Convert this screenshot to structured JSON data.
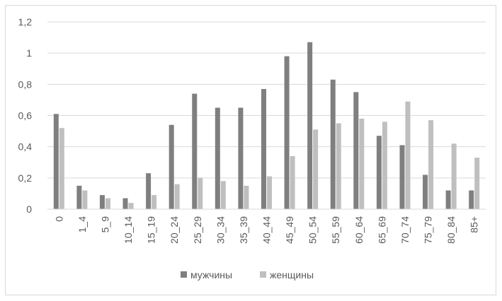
{
  "chart_data": {
    "type": "bar",
    "title": "",
    "xlabel": "",
    "ylabel": "",
    "ylim": [
      0,
      1.2
    ],
    "yticks": [
      "0",
      "0,2",
      "0,4",
      "0,6",
      "0,8",
      "1",
      "1,2"
    ],
    "ytick_values": [
      0,
      0.2,
      0.4,
      0.6,
      0.8,
      1.0,
      1.2
    ],
    "grid": true,
    "legend_position": "bottom",
    "categories": [
      "0",
      "1_4",
      "5_9",
      "10_14",
      "15_19",
      "20_24",
      "25_29",
      "30_34",
      "35_39",
      "40_44",
      "45_49",
      "50_54",
      "55_59",
      "60_64",
      "65_69",
      "70_74",
      "75_79",
      "80_84",
      "85+"
    ],
    "series": [
      {
        "name": "мужчины",
        "color": "#7f7f7f",
        "values": [
          0.61,
          0.15,
          0.09,
          0.07,
          0.23,
          0.54,
          0.74,
          0.65,
          0.65,
          0.77,
          0.98,
          1.07,
          0.83,
          0.75,
          0.47,
          0.41,
          0.22,
          0.12,
          0.12
        ]
      },
      {
        "name": "женщины",
        "color": "#bfbfbf",
        "values": [
          0.52,
          0.12,
          0.07,
          0.04,
          0.09,
          0.16,
          0.2,
          0.18,
          0.15,
          0.21,
          0.34,
          0.51,
          0.55,
          0.58,
          0.56,
          0.69,
          0.57,
          0.42,
          0.33
        ]
      }
    ]
  }
}
